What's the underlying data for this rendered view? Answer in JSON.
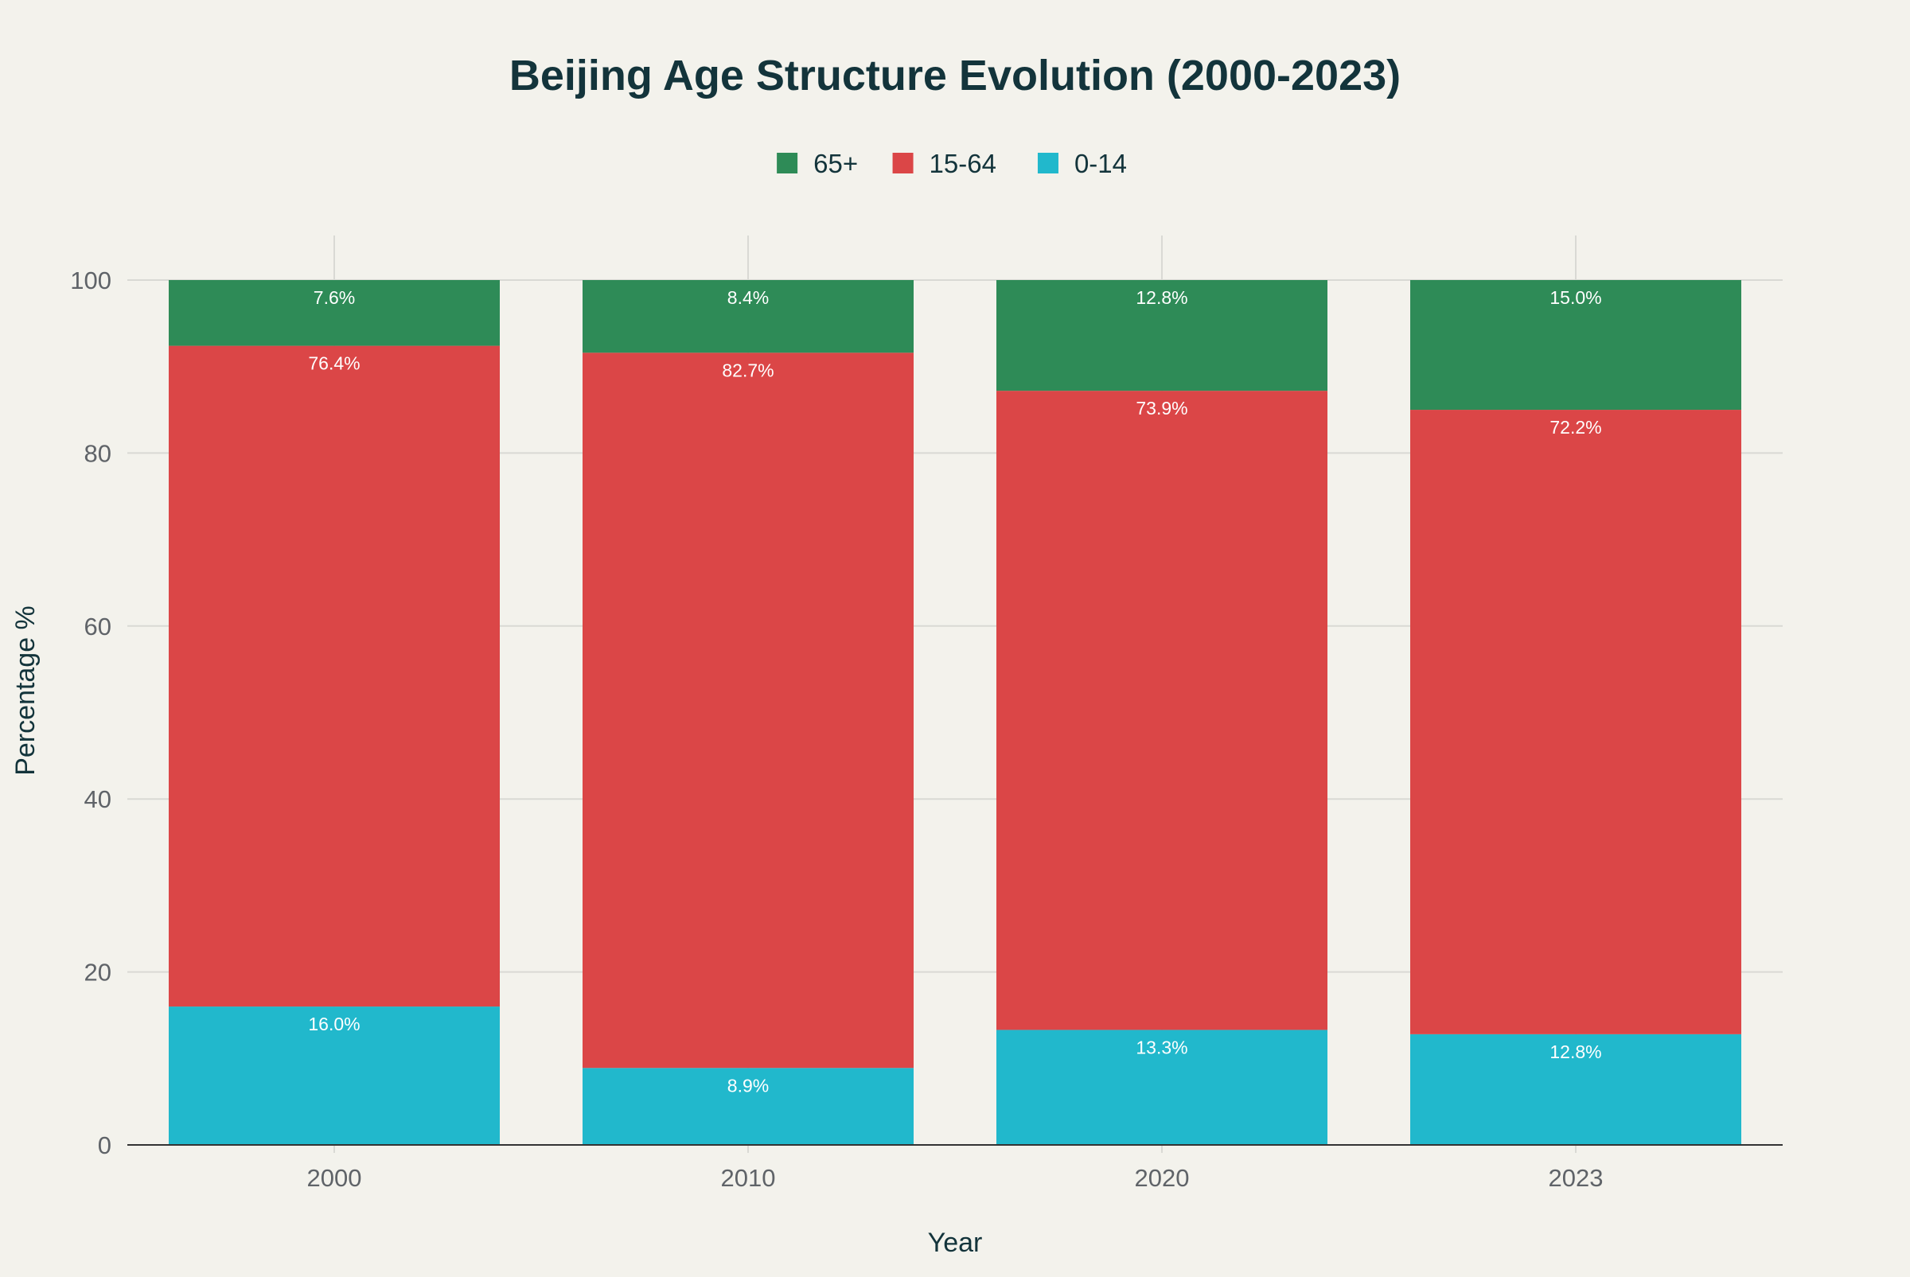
{
  "chart_data": {
    "type": "bar",
    "stacked": true,
    "title": "Beijing Age Structure Evolution (2000-2023)",
    "xlabel": "Year",
    "ylabel": "Percentage %",
    "categories": [
      "2000",
      "2010",
      "2020",
      "2023"
    ],
    "ylim": [
      0,
      100
    ],
    "yticks": [
      0,
      20,
      40,
      60,
      80,
      100
    ],
    "grid": true,
    "legend_position": "top-center",
    "series": [
      {
        "name": "0-14",
        "color": "#21b8cc",
        "values": [
          16.0,
          8.9,
          13.3,
          12.8
        ],
        "labels": [
          "16.0%",
          "8.9%",
          "13.3%",
          "12.8%"
        ]
      },
      {
        "name": "15-64",
        "color": "#db4647",
        "values": [
          76.4,
          82.7,
          73.9,
          72.2
        ],
        "labels": [
          "76.4%",
          "82.7%",
          "73.9%",
          "72.2%"
        ]
      },
      {
        "name": "65+",
        "color": "#2e8b57",
        "values": [
          7.6,
          8.4,
          12.8,
          15.0
        ],
        "labels": [
          "7.6%",
          "8.4%",
          "12.8%",
          "15.0%"
        ]
      }
    ],
    "legend_order": [
      "65+",
      "15-64",
      "0-14"
    ]
  },
  "colors": {
    "background": "#f3f2ec",
    "title": "#13343b",
    "tick_text": "#5f6368",
    "gridline": "#d9d9d4",
    "axis_line": "#333333",
    "bar_label": "#ffffff"
  }
}
